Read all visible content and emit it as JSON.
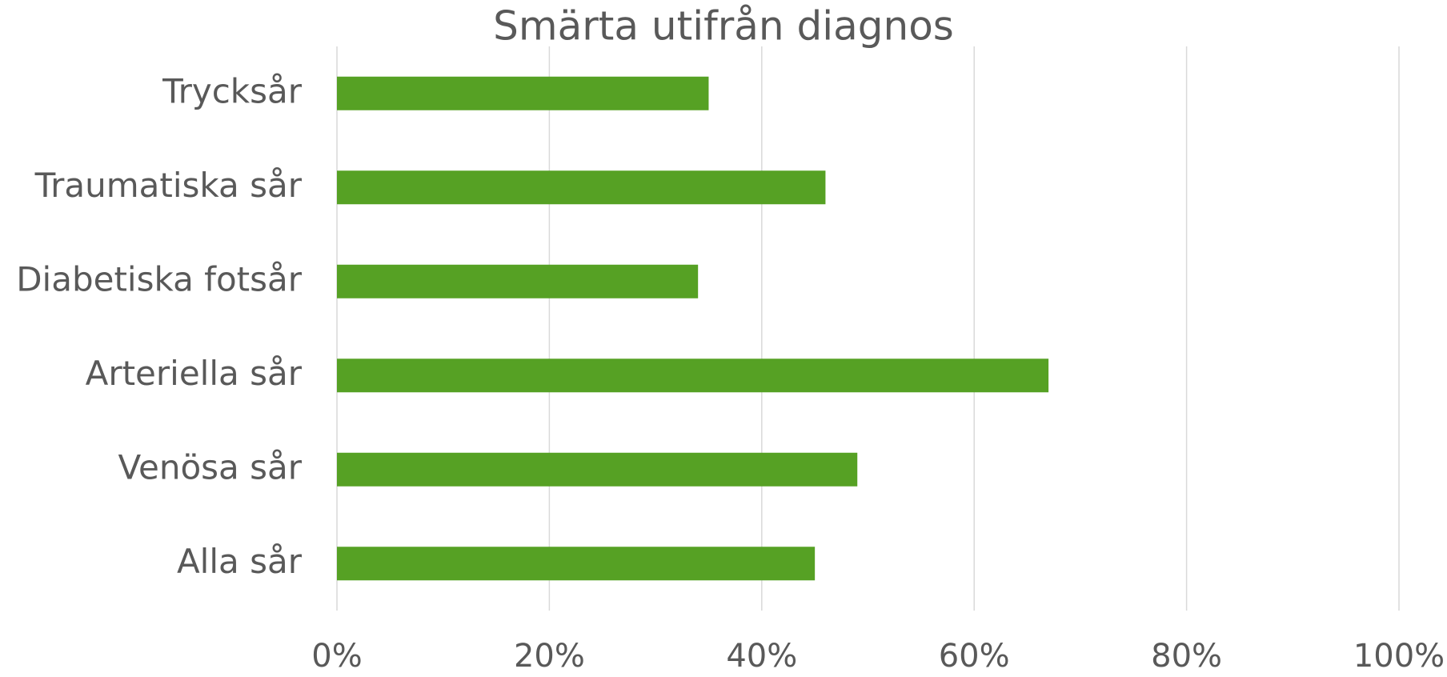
{
  "chart_data": {
    "type": "bar",
    "orientation": "horizontal",
    "title": "Smärta utifrån diagnos",
    "categories": [
      "Trycksår",
      "Traumatiska sår",
      "Diabetiska fotsår",
      "Arteriella sår",
      "Venösa sår",
      "Alla sår"
    ],
    "values": [
      35,
      46,
      34,
      67,
      49,
      45
    ],
    "color": "#56a124",
    "xlim": [
      0,
      100
    ],
    "xticks": [
      {
        "value": 0,
        "label": "0%"
      },
      {
        "value": 20,
        "label": "20%"
      },
      {
        "value": 40,
        "label": "40%"
      },
      {
        "value": 60,
        "label": "60%"
      },
      {
        "value": 80,
        "label": "80%"
      },
      {
        "value": 100,
        "label": "100%"
      }
    ],
    "grid": true
  }
}
